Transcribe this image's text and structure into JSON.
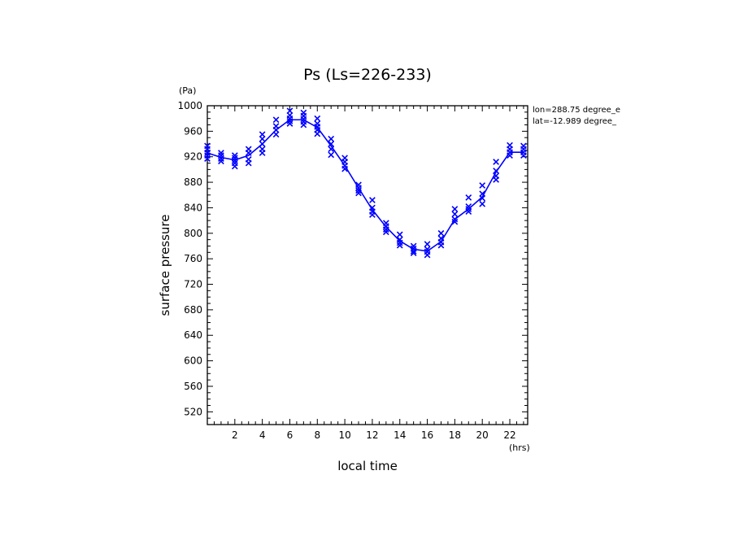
{
  "chart_data": {
    "type": "line",
    "title": "Ps (Ls=226-233)",
    "xlabel": "local time",
    "ylabel": "surface pressure",
    "x_unit": "(hrs)",
    "y_unit": "(Pa)",
    "xlim": [
      0,
      23.3
    ],
    "ylim": [
      500,
      1000
    ],
    "x_ticks": [
      2,
      4,
      6,
      8,
      10,
      12,
      14,
      16,
      18,
      20,
      22
    ],
    "y_ticks": [
      520,
      560,
      600,
      640,
      680,
      720,
      760,
      800,
      840,
      880,
      920,
      960,
      1000
    ],
    "info": [
      "lon=288.75 degree_e",
      "lat=-12.989 degree_"
    ],
    "color": "#0000ff",
    "series": [
      {
        "kind": "line",
        "x": [
          0,
          1,
          2,
          3,
          4,
          5,
          6,
          7,
          8,
          9,
          10,
          11,
          12,
          13,
          14,
          15,
          16,
          17,
          18,
          19,
          20,
          21,
          22,
          23
        ],
        "values": [
          926,
          919,
          915,
          922,
          940,
          962,
          978,
          978,
          966,
          937,
          906,
          871,
          837,
          810,
          788,
          775,
          772,
          787,
          822,
          838,
          857,
          896,
          927,
          927
        ]
      },
      {
        "kind": "scatter",
        "x": [
          0,
          0,
          0,
          0,
          0,
          1,
          1,
          1,
          1,
          2,
          2,
          2,
          2,
          2,
          3,
          3,
          3,
          3,
          4,
          4,
          4,
          4,
          4,
          5,
          5,
          5,
          5,
          6,
          6,
          6,
          6,
          6,
          7,
          7,
          7,
          7,
          7,
          8,
          8,
          8,
          8,
          8,
          9,
          9,
          9,
          9,
          10,
          10,
          10,
          10,
          11,
          11,
          11,
          11,
          12,
          12,
          12,
          12,
          13,
          13,
          13,
          13,
          14,
          14,
          14,
          14,
          15,
          15,
          15,
          15,
          16,
          16,
          16,
          16,
          17,
          17,
          17,
          17,
          18,
          18,
          18,
          18,
          19,
          19,
          19,
          19,
          20,
          20,
          20,
          20,
          21,
          21,
          21,
          21,
          22,
          22,
          22,
          22,
          23,
          23,
          23,
          23
        ],
        "values": [
          937,
          932,
          926,
          922,
          917,
          926,
          922,
          917,
          913,
          922,
          918,
          914,
          910,
          905,
          932,
          926,
          916,
          910,
          955,
          948,
          940,
          932,
          926,
          978,
          968,
          962,
          955,
          992,
          985,
          980,
          976,
          972,
          989,
          984,
          979,
          975,
          970,
          980,
          972,
          967,
          962,
          956,
          948,
          940,
          932,
          923,
          918,
          912,
          906,
          901,
          876,
          871,
          867,
          863,
          852,
          840,
          834,
          829,
          816,
          811,
          806,
          802,
          798,
          790,
          785,
          781,
          780,
          776,
          772,
          769,
          783,
          775,
          771,
          766,
          800,
          792,
          786,
          781,
          838,
          830,
          822,
          818,
          856,
          842,
          838,
          834,
          875,
          862,
          855,
          846,
          912,
          898,
          890,
          884,
          938,
          932,
          927,
          922,
          937,
          932,
          927,
          922
        ]
      }
    ]
  }
}
